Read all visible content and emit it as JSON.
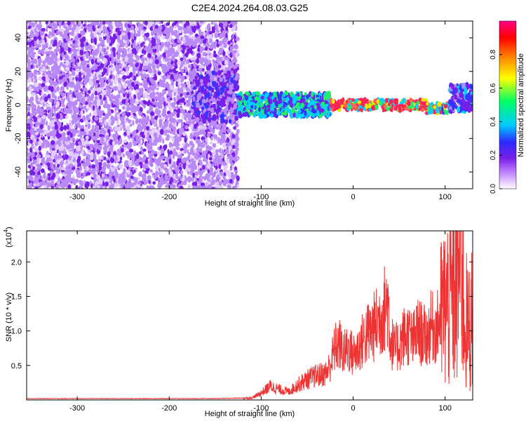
{
  "title": "C2E4.2024.264.08.03.G25",
  "chart_data": [
    {
      "type": "heatmap",
      "title": "C2E4.2024.264.08.03.G25",
      "xlabel": "Height of straight line (km)",
      "ylabel": "Frequency (Hz)",
      "xlim": [
        -355,
        130
      ],
      "ylim": [
        -50,
        50
      ],
      "xticks": [
        -300,
        -200,
        -100,
        0,
        100
      ],
      "yticks": [
        -40,
        -20,
        0,
        20,
        40
      ],
      "colorbar": {
        "label": "Normalized spectral amplitude",
        "range": [
          0,
          1
        ],
        "ticks": [
          "0.0",
          "0.2",
          "0.4",
          "0.6",
          "0.8"
        ],
        "colors": [
          "#ffffff",
          "#cc99ff",
          "#7a1fe8",
          "#2b2bff",
          "#00ccff",
          "#00ff66",
          "#ffff00",
          "#ff8800",
          "#ff0000",
          "#ff0088"
        ]
      },
      "regions": [
        {
          "x": [
            -355,
            -125
          ],
          "f_range": [
            -50,
            50
          ],
          "amplitude": 0.12,
          "description": "broadband noise"
        },
        {
          "x": [
            -175,
            -125
          ],
          "f_range": [
            -10,
            20
          ],
          "amplitude": 0.2
        },
        {
          "x": [
            -125,
            -25
          ],
          "center_hz": 0,
          "width_hz": 14,
          "amplitude": 0.4
        },
        {
          "x": [
            -25,
            80
          ],
          "center_hz": 0,
          "width_hz": 6,
          "amplitude": 0.85
        },
        {
          "x": [
            80,
            105
          ],
          "center_hz": -2,
          "width_hz": 6,
          "amplitude": 0.7
        },
        {
          "x": [
            105,
            130
          ],
          "center_hz": 4,
          "width_hz": 16,
          "amplitude": 0.25
        }
      ]
    },
    {
      "type": "line",
      "xlabel": "Height of straight line (km)",
      "ylabel": "SNR (10 * v/v)",
      "y_multiplier": "(x10",
      "y_multiplier_exp": "4",
      "xlim": [
        -355,
        130
      ],
      "ylim": [
        0,
        2.45
      ],
      "xticks": [
        -300,
        -200,
        -100,
        0,
        100
      ],
      "yticks": [
        "0.5",
        "1.0",
        "1.5",
        "2.0"
      ],
      "color": "#ee3333",
      "series": [
        {
          "x": [
            -355,
            -250,
            -150,
            -110,
            -100,
            -90,
            -80,
            -70,
            -60,
            -50,
            -40,
            -30,
            -25,
            -20,
            -15,
            -10,
            -5,
            0,
            5,
            10,
            15,
            20,
            25,
            30,
            35,
            38,
            40,
            45,
            50,
            55,
            60,
            65,
            70,
            75,
            80,
            85,
            90,
            95,
            100,
            105,
            110,
            115,
            118,
            120,
            125,
            130
          ],
          "y": [
            0.02,
            0.02,
            0.02,
            0.03,
            0.1,
            0.2,
            0.15,
            0.12,
            0.22,
            0.3,
            0.35,
            0.38,
            0.5,
            0.75,
            0.8,
            0.68,
            0.75,
            0.65,
            0.72,
            0.85,
            0.95,
            1.0,
            1.1,
            1.2,
            1.35,
            1.45,
            0.92,
            0.72,
            0.8,
            0.92,
            0.95,
            0.85,
            1.0,
            0.95,
            0.9,
            1.08,
            1.0,
            1.2,
            1.35,
            1.45,
            1.55,
            1.9,
            2.4,
            1.3,
            1.0,
            1.2
          ]
        }
      ]
    }
  ]
}
